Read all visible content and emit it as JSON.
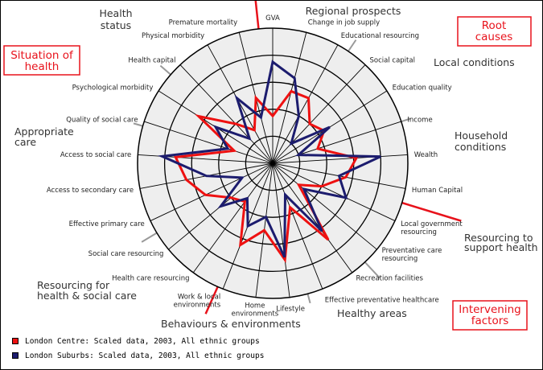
{
  "chart_data": {
    "type": "radar",
    "spokes": [
      "GVA",
      "Change in job supply",
      "Educational resourcing",
      "Social capital",
      "Education quality",
      "Income",
      "Wealth",
      "Human Capital",
      "Local government resourcing",
      "Preventative care resourcing",
      "Recreation facilities",
      "Effective preventative healthcare",
      "Lifestyle",
      "Home environments",
      "Work & local environments",
      "Health care resourcing",
      "Social care resourcing",
      "Effective primary care",
      "Access to secondary care",
      "Access to social care",
      "Quality of social care",
      "Psychological morbidity",
      "Health capital",
      "Physical morbidity",
      "Premature mortality"
    ],
    "rmax": 1.0,
    "rings": 5,
    "series": [
      {
        "name": "London Centre: Scaled data, 2003, All ethnic groups",
        "color": "#ee1111",
        "values": [
          0.35,
          0.55,
          0.55,
          0.4,
          0.45,
          0.35,
          0.62,
          0.55,
          0.4,
          0.25,
          0.7,
          0.35,
          0.72,
          0.5,
          0.65,
          0.35,
          0.4,
          0.55,
          0.65,
          0.72,
          0.3,
          0.65,
          0.4,
          0.28,
          0.5
        ]
      },
      {
        "name": "London Suburbs: Scaled data, 2003, All ethnic groups",
        "color": "#1c1c6e",
        "values": [
          0.75,
          0.65,
          0.4,
          0.2,
          0.5,
          0.2,
          0.8,
          0.5,
          0.6,
          0.3,
          0.62,
          0.25,
          0.7,
          0.4,
          0.5,
          0.32,
          0.5,
          0.25,
          0.5,
          0.82,
          0.35,
          0.5,
          0.25,
          0.55,
          0.35
        ]
      }
    ]
  },
  "group_labels": {
    "health_status": [
      "Health",
      "status"
    ],
    "regional_prospects": "Regional prospects",
    "local_conditions": "Local conditions",
    "household_conditions": [
      "Household",
      "conditions"
    ],
    "resourcing_support": [
      "Resourcing to",
      "support health"
    ],
    "healthy_areas": "Healthy areas",
    "behaviours": "Behaviours & environments",
    "resourcing_health": [
      "Resourcing for",
      "health & social care"
    ],
    "appropriate_care": [
      "Appropriate",
      "care"
    ]
  },
  "boxed_labels": {
    "situation_of_health": [
      "Situation of",
      "health"
    ],
    "root_causes": [
      "Root",
      "causes"
    ],
    "intervening_factors": [
      "Intervening",
      "factors"
    ]
  },
  "legend": [
    {
      "label": "London Centre: Scaled data, 2003, All ethnic groups",
      "color": "#ee1111"
    },
    {
      "label": "London Suburbs: Scaled data, 2003, All ethnic groups",
      "color": "#1c1c6e"
    }
  ],
  "colors": {
    "plot_fill": "#eeeeee",
    "grid": "#000000",
    "divider_red": "#e8121b",
    "divider_grey": "#999999",
    "box_red": "#e8121b"
  }
}
